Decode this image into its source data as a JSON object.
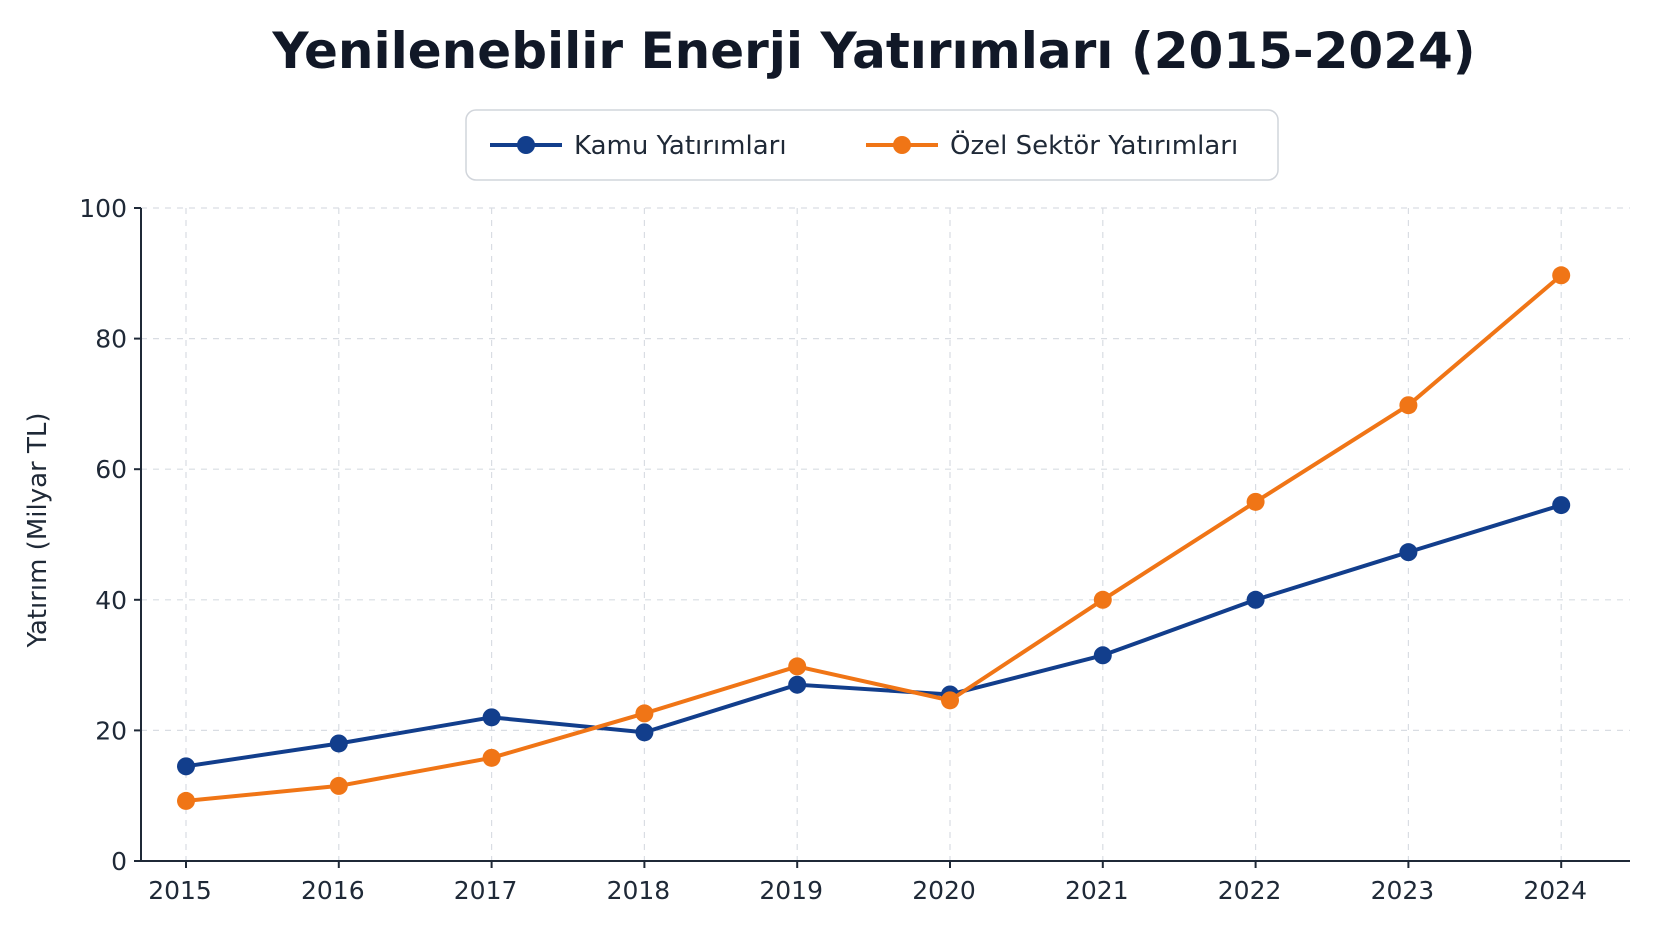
{
  "chart_data": {
    "type": "line",
    "title": "Yenilenebilir Enerji Yatırımları (2015-2024)",
    "xlabel": "",
    "ylabel": "Yatırım (Milyar TL)",
    "categories": [
      "2015",
      "2016",
      "2017",
      "2018",
      "2019",
      "2020",
      "2021",
      "2022",
      "2023",
      "2024"
    ],
    "series": [
      {
        "name": "Kamu Yatırımları",
        "color": "#123e8c",
        "values": [
          14.5,
          18,
          22,
          19.7,
          27,
          25.5,
          31.5,
          40,
          47.3,
          54.5
        ]
      },
      {
        "name": "Özel Sektör Yatırımları",
        "color": "#f07516",
        "values": [
          9.2,
          11.5,
          15.8,
          22.6,
          29.8,
          24.6,
          40,
          55,
          69.8,
          89.7
        ]
      }
    ],
    "ylim": [
      0,
      100
    ],
    "yticks": [
      0,
      20,
      40,
      60,
      80,
      100
    ],
    "grid": true,
    "legend_position": "top-center"
  }
}
